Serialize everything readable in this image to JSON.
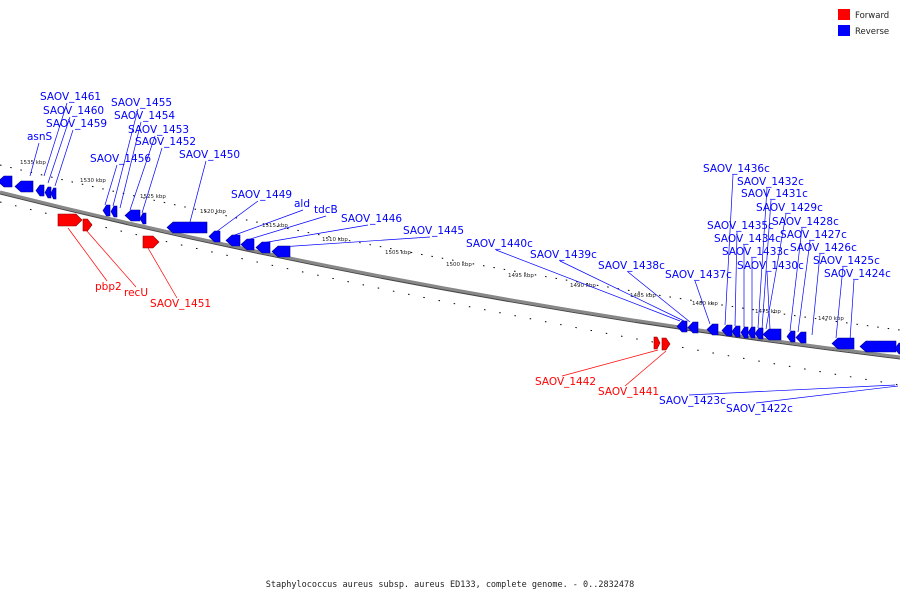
{
  "legend": {
    "forward_label": "Forward",
    "reverse_label": "Reverse",
    "forward_color": "#ff0000",
    "reverse_color": "#0000ff"
  },
  "caption": "Staphylococcus aureus subsp. aureus ED133, complete genome. - 0..2832478",
  "scale_labels": [
    "1535 kbp",
    "1530 kbp",
    "1525 kbp",
    "1520 kbp",
    "1515 kbp",
    "1510 kbp",
    "1505 kbp",
    "1500 kbp",
    "1495 kbp",
    "1490 kbp",
    "1485 kbp",
    "1480 kbp",
    "1475 kbp",
    "1470 kbp"
  ],
  "reverse_genes": [
    "SAOV_1461",
    "SAOV_1460",
    "SAOV_1459",
    "asnS",
    "SAOV_1456",
    "SAOV_1455",
    "SAOV_1454",
    "SAOV_1453",
    "SAOV_1452",
    "SAOV_1450",
    "SAOV_1449",
    "ald",
    "tdcB",
    "SAOV_1446",
    "SAOV_1445",
    "SAOV_1440c",
    "SAOV_1439c",
    "SAOV_1438c",
    "SAOV_1437c",
    "SAOV_1436c",
    "SAOV_1435c",
    "SAOV_1434c",
    "SAOV_1433c",
    "SAOV_1432c",
    "SAOV_1431c",
    "SAOV_1430c",
    "SAOV_1429c",
    "SAOV_1428c",
    "SAOV_1427c",
    "SAOV_1426c",
    "SAOV_1425c",
    "SAOV_1424c",
    "SAOV_1423c",
    "SAOV_1422c"
  ],
  "forward_genes": [
    "pbp2",
    "recU",
    "SAOV_1451",
    "SAOV_1442",
    "SAOV_1441"
  ]
}
